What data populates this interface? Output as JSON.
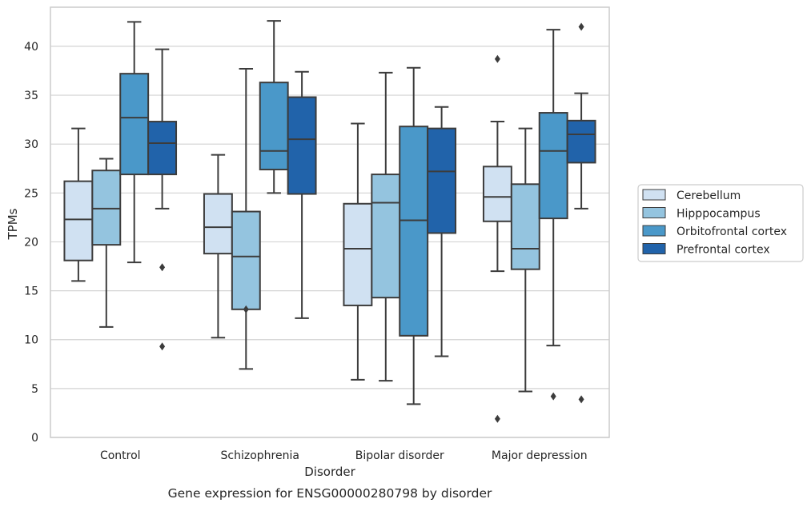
{
  "chart_data": {
    "type": "box",
    "title": "",
    "caption": "Gene expression for ENSG00000280798 by disorder",
    "xlabel": "Disorder",
    "ylabel": "TPMs",
    "ylim": [
      0,
      44
    ],
    "yticks": [
      0,
      5,
      10,
      15,
      20,
      25,
      30,
      35,
      40
    ],
    "grid": "horizontal",
    "legend_position": "right",
    "categories": [
      "Control",
      "Schizophrenia",
      "Bipolar disorder",
      "Major depression"
    ],
    "series": [
      {
        "name": "Cerebellum",
        "color": "#d0e1f2",
        "boxes": [
          {
            "whisker_low": 16.0,
            "q1": 18.1,
            "median": 22.3,
            "q3": 26.2,
            "whisker_high": 31.6,
            "outliers": []
          },
          {
            "whisker_low": 10.2,
            "q1": 18.8,
            "median": 21.5,
            "q3": 24.9,
            "whisker_high": 28.9,
            "outliers": []
          },
          {
            "whisker_low": 5.9,
            "q1": 13.5,
            "median": 19.3,
            "q3": 23.9,
            "whisker_high": 32.1,
            "outliers": []
          },
          {
            "whisker_low": 17.0,
            "q1": 22.1,
            "median": 24.6,
            "q3": 27.7,
            "whisker_high": 32.3,
            "outliers": [
              38.7,
              1.9
            ]
          }
        ]
      },
      {
        "name": "Hipppocampus",
        "color": "#94c4df",
        "boxes": [
          {
            "whisker_low": 11.3,
            "q1": 19.7,
            "median": 23.4,
            "q3": 27.3,
            "whisker_high": 28.5,
            "outliers": []
          },
          {
            "whisker_low": 7.0,
            "q1": 13.1,
            "median": 18.5,
            "q3": 23.1,
            "whisker_high": 37.7,
            "outliers": [
              13.1
            ]
          },
          {
            "whisker_low": 5.8,
            "q1": 14.3,
            "median": 24.0,
            "q3": 26.9,
            "whisker_high": 37.3,
            "outliers": []
          },
          {
            "whisker_low": 4.7,
            "q1": 17.2,
            "median": 19.3,
            "q3": 25.9,
            "whisker_high": 31.6,
            "outliers": []
          }
        ]
      },
      {
        "name": "Orbitofrontal cortex",
        "color": "#4a98c9",
        "boxes": [
          {
            "whisker_low": 17.9,
            "q1": 26.9,
            "median": 32.7,
            "q3": 37.2,
            "whisker_high": 42.5,
            "outliers": []
          },
          {
            "whisker_low": 25.0,
            "q1": 27.4,
            "median": 29.3,
            "q3": 36.3,
            "whisker_high": 42.6,
            "outliers": []
          },
          {
            "whisker_low": 3.4,
            "q1": 10.4,
            "median": 22.2,
            "q3": 31.8,
            "whisker_high": 37.8,
            "outliers": []
          },
          {
            "whisker_low": 9.4,
            "q1": 22.4,
            "median": 29.3,
            "q3": 33.2,
            "whisker_high": 41.7,
            "outliers": [
              4.2
            ]
          }
        ]
      },
      {
        "name": "Prefrontal cortex",
        "color": "#2163aa",
        "boxes": [
          {
            "whisker_low": 23.4,
            "q1": 26.9,
            "median": 30.1,
            "q3": 32.3,
            "whisker_high": 39.7,
            "outliers": [
              17.4,
              9.3
            ]
          },
          {
            "whisker_low": 12.2,
            "q1": 24.9,
            "median": 30.5,
            "q3": 34.8,
            "whisker_high": 37.4,
            "outliers": []
          },
          {
            "whisker_low": 8.3,
            "q1": 20.9,
            "median": 27.2,
            "q3": 31.6,
            "whisker_high": 33.8,
            "outliers": []
          },
          {
            "whisker_low": 23.4,
            "q1": 28.1,
            "median": 31.0,
            "q3": 32.4,
            "whisker_high": 35.2,
            "outliers": [
              42.0,
              3.9
            ]
          }
        ]
      }
    ]
  },
  "styles": {
    "grid_color": "#d3d3d3",
    "frame_color": "#cccccc",
    "line_color": "#3c3c3c",
    "legend_border": "#cccccc"
  }
}
